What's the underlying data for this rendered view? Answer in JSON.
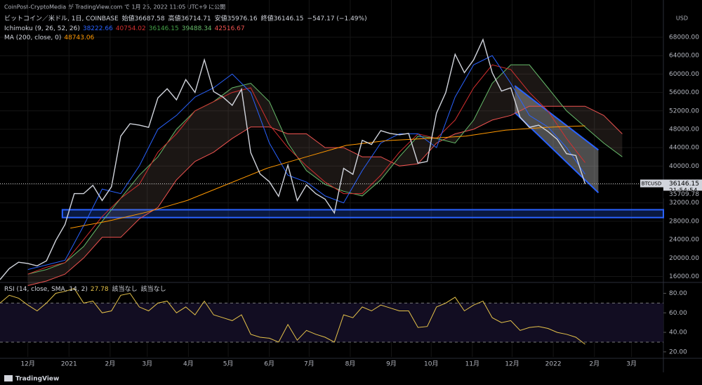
{
  "header": {
    "published": "CoinPost-CryptoMedia が TradingView.com で 1月 25, 2022 11:05 UTC+9 に公開"
  },
  "footer": {
    "brand": "TradingView"
  },
  "chart_data": [
    {
      "type": "line",
      "title": "ビットコイン／米ドル, 1日, COINBASE",
      "ohlc_labels": [
        "始値",
        "高値",
        "安値",
        "終値"
      ],
      "ohlc_values": [
        36687.58,
        36714.71,
        35976.16,
        36146.15
      ],
      "change_label": "−547.17 (−1.49%)",
      "indicators": [
        {
          "name": "Ichimoku (9, 26, 52, 26)",
          "values": [
            38222.66,
            40754.02,
            36146.15,
            39488.34,
            42516.67
          ],
          "colors": [
            "#2962ff",
            "#d32f2f",
            "#43a047",
            "#66bb6a",
            "#ef5350"
          ]
        },
        {
          "name": "MA (200, close, 0)",
          "values": [
            48743.06
          ],
          "colors": [
            "#ff9800"
          ]
        }
      ],
      "symbol": "BTCUSD",
      "last_price": 36146.15,
      "countdown": "21:54:54",
      "low_price": 35709.78,
      "unit": "USD",
      "xlim": [
        -21,
        479
      ],
      "ylim": [
        15000,
        73350
      ],
      "xticks": [
        {
          "value": 0,
          "label": "12月"
        },
        {
          "value": 31,
          "label": "2021"
        },
        {
          "value": 62,
          "label": "2月"
        },
        {
          "value": 90,
          "label": "3月"
        },
        {
          "value": 121,
          "label": "4月"
        },
        {
          "value": 151,
          "label": "5月"
        },
        {
          "value": 182,
          "label": "6月"
        },
        {
          "value": 212,
          "label": "7月"
        },
        {
          "value": 243,
          "label": "8月"
        },
        {
          "value": 274,
          "label": "9月"
        },
        {
          "value": 304,
          "label": "10月"
        },
        {
          "value": 335,
          "label": "11月"
        },
        {
          "value": 365,
          "label": "12月"
        },
        {
          "value": 396,
          "label": "2022"
        },
        {
          "value": 427,
          "label": "2月"
        },
        {
          "value": 455,
          "label": "3月"
        }
      ],
      "yticks": [
        {
          "value": 16000,
          "label": "16000.00"
        },
        {
          "value": 20000,
          "label": "20000.00"
        },
        {
          "value": 24000,
          "label": "24000.00"
        },
        {
          "value": 28000,
          "label": "28000.00"
        },
        {
          "value": 32000,
          "label": "32000.00"
        },
        {
          "value": 36000,
          "label": "36000.00"
        },
        {
          "value": 40000,
          "label": "40000.00"
        },
        {
          "value": 44000,
          "label": "44000.00"
        },
        {
          "value": 48000,
          "label": "48000.00"
        },
        {
          "value": 52000,
          "label": "52000.00"
        },
        {
          "value": 56000,
          "label": "56000.00"
        },
        {
          "value": 60000,
          "label": "60000.00"
        },
        {
          "value": 64000,
          "label": "64000.00"
        },
        {
          "value": 68000,
          "label": "68000.00"
        }
      ],
      "grid": true,
      "series": [
        {
          "color": "#d1d4dc",
          "x": [
            -21,
            -14,
            -7,
            0,
            7,
            14,
            21,
            28,
            35,
            42,
            49,
            56,
            63,
            70,
            77,
            84,
            91,
            98,
            105,
            112,
            119,
            126,
            133,
            140,
            147,
            154,
            161,
            168,
            175,
            182,
            189,
            196,
            203,
            210,
            217,
            224,
            231,
            238,
            245,
            252,
            259,
            266,
            273,
            280,
            287,
            294,
            301,
            308,
            315,
            322,
            329,
            336,
            343,
            350,
            357,
            364,
            371,
            378,
            385,
            392,
            399,
            406,
            413,
            420
          ],
          "values": [
            15300,
            17700,
            19100,
            18800,
            18300,
            19400,
            23800,
            27300,
            34000,
            34000,
            35800,
            32500,
            35500,
            46500,
            49200,
            48900,
            48400,
            54800,
            56800,
            54400,
            58800,
            56000,
            63100,
            56200,
            55000,
            53200,
            56700,
            42900,
            38300,
            36600,
            33400,
            40200,
            32500,
            35900,
            34000,
            32800,
            29800,
            39500,
            38200,
            45600,
            44700,
            47700,
            47100,
            46800,
            47100,
            40600,
            41000,
            51500,
            56000,
            64300,
            60300,
            63100,
            67500,
            60300,
            56300,
            57000,
            50600,
            48400,
            48900,
            47500,
            45800,
            42700,
            42300,
            36146.15
          ]
        },
        {
          "color": "#ff9800",
          "x": [
            32,
            60,
            90,
            120,
            150,
            180,
            210,
            240,
            270,
            300,
            330,
            360,
            390,
            420
          ],
          "values": [
            26500,
            28000,
            30000,
            32500,
            36000,
            39500,
            42000,
            44500,
            45500,
            46000,
            46500,
            47800,
            48400,
            48743.06
          ]
        },
        {
          "color": "#2962ff",
          "x": [
            0,
            14,
            28,
            42,
            56,
            70,
            84,
            98,
            112,
            126,
            140,
            154,
            168,
            182,
            196,
            210,
            224,
            238,
            252,
            266,
            280,
            294,
            308,
            322,
            336,
            350,
            364,
            378,
            392,
            406,
            420
          ],
          "values": [
            17500,
            18500,
            19500,
            27000,
            35000,
            34000,
            40000,
            48000,
            51000,
            55000,
            57000,
            60000,
            56000,
            45000,
            38000,
            36500,
            33500,
            32000,
            39000,
            45000,
            47000,
            47000,
            44000,
            55000,
            62000,
            64000,
            58000,
            51000,
            48500,
            44000,
            38222.66
          ]
        },
        {
          "color": "#d32f2f",
          "x": [
            0,
            14,
            28,
            42,
            56,
            70,
            84,
            98,
            112,
            126,
            140,
            154,
            168,
            182,
            196,
            210,
            224,
            238,
            252,
            266,
            280,
            294,
            308,
            322,
            336,
            350,
            364,
            378,
            392,
            406,
            420
          ],
          "values": [
            16500,
            18000,
            19000,
            24000,
            29000,
            33000,
            36000,
            43000,
            47000,
            52000,
            54000,
            56000,
            57000,
            49000,
            44000,
            40000,
            36500,
            34000,
            34000,
            38000,
            43000,
            47000,
            46000,
            50000,
            57000,
            62000,
            61000,
            56000,
            52000,
            46000,
            40754.02
          ]
        },
        {
          "color": "#66bb6a",
          "x": [
            0,
            14,
            28,
            42,
            56,
            70,
            84,
            98,
            112,
            126,
            140,
            154,
            168,
            182,
            196,
            210,
            224,
            238,
            252,
            266,
            280,
            294,
            308,
            322,
            336,
            350,
            364,
            378,
            392,
            406,
            420,
            434,
            448
          ],
          "values": [
            16500,
            17500,
            19000,
            22500,
            28000,
            33000,
            38000,
            42000,
            48000,
            52000,
            54000,
            57000,
            58000,
            54000,
            45000,
            39000,
            36000,
            34500,
            33500,
            37000,
            42000,
            46500,
            46000,
            45000,
            50000,
            58000,
            62000,
            62000,
            57000,
            52000,
            48500,
            45000,
            42000
          ]
        },
        {
          "color": "#ef5350",
          "x": [
            0,
            14,
            28,
            42,
            56,
            70,
            84,
            98,
            112,
            126,
            140,
            154,
            168,
            182,
            196,
            210,
            224,
            238,
            252,
            266,
            280,
            294,
            308,
            322,
            336,
            350,
            364,
            378,
            392,
            406,
            420,
            434,
            448
          ],
          "values": [
            14000,
            15000,
            16500,
            20000,
            24500,
            24500,
            28500,
            31000,
            37000,
            41000,
            43000,
            46000,
            48500,
            48500,
            47000,
            47000,
            44000,
            44000,
            42000,
            42000,
            40000,
            40500,
            45000,
            47000,
            48000,
            50000,
            51000,
            53000,
            53000,
            53000,
            53000,
            51000,
            47000
          ]
        }
      ],
      "support_zone": {
        "x_start": 26,
        "values": [
          28800,
          30500
        ]
      },
      "channel": {
        "x": [
          367,
          430
        ],
        "upper": [
          57450,
          43500
        ],
        "lower": [
          51650,
          34200
        ]
      }
    },
    {
      "type": "line",
      "title": "RSI (14, close, SMA, 14, 2)",
      "legend_value": 27.78,
      "legend_na": [
        "該当なし",
        "該当なし"
      ],
      "xlim": [
        -21,
        479
      ],
      "ylim": [
        17,
        89
      ],
      "yticks": [
        {
          "value": 20,
          "label": "20.00"
        },
        {
          "value": 40,
          "label": "40.00"
        },
        {
          "value": 60,
          "label": "60.00"
        },
        {
          "value": 80,
          "label": "80.00"
        }
      ],
      "bands": [
        30,
        70
      ],
      "color": "#e6c34a",
      "x": [
        -21,
        -14,
        -7,
        0,
        7,
        14,
        21,
        28,
        35,
        42,
        49,
        56,
        63,
        70,
        77,
        84,
        91,
        98,
        105,
        112,
        119,
        126,
        133,
        140,
        147,
        154,
        161,
        168,
        175,
        182,
        189,
        196,
        203,
        210,
        217,
        224,
        231,
        238,
        245,
        252,
        259,
        266,
        273,
        280,
        287,
        294,
        301,
        308,
        315,
        322,
        329,
        336,
        343,
        350,
        357,
        364,
        371,
        378,
        385,
        392,
        399,
        406,
        413,
        420
      ],
      "values": [
        70,
        78,
        75,
        68,
        62,
        70,
        80,
        82,
        85,
        70,
        72,
        60,
        62,
        78,
        80,
        66,
        62,
        70,
        72,
        60,
        66,
        58,
        72,
        58,
        55,
        52,
        58,
        38,
        35,
        34,
        30,
        48,
        32,
        42,
        38,
        35,
        30,
        58,
        55,
        66,
        62,
        68,
        65,
        62,
        62,
        45,
        46,
        66,
        70,
        76,
        62,
        68,
        72,
        55,
        50,
        52,
        42,
        45,
        46,
        44,
        40,
        38,
        35,
        27.78
      ]
    }
  ]
}
